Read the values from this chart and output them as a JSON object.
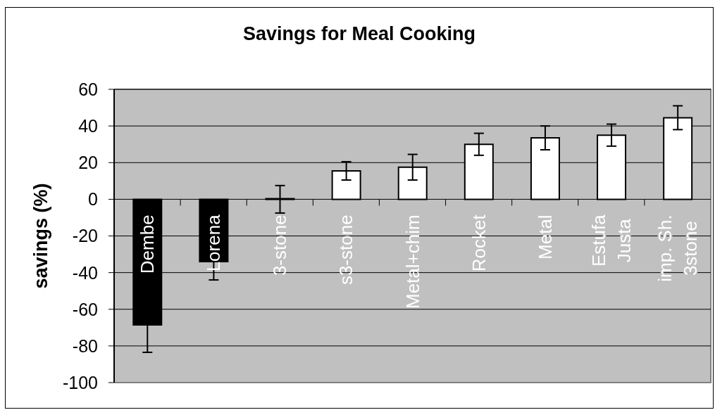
{
  "chart_data": {
    "type": "bar",
    "title": "Savings for Meal Cooking",
    "ylabel": "savings (%)",
    "categories": [
      "Dembe",
      "Lorena",
      "3-stone",
      "s3-stone",
      "Metal+chim",
      "Rocket",
      "Metal",
      "Estufa Justa",
      "imp. Sh. 3stone"
    ],
    "values": [
      -68.5,
      -34,
      0,
      15.5,
      17.5,
      30,
      33.5,
      35,
      44.5
    ],
    "errors": [
      15,
      10,
      7.5,
      5,
      7,
      6,
      6.5,
      6,
      6.5
    ],
    "colors": [
      "#000000",
      "#000000",
      "#ffffff",
      "#ffffff",
      "#ffffff",
      "#ffffff",
      "#ffffff",
      "#ffffff",
      "#ffffff"
    ],
    "ylim": [
      -100,
      60
    ],
    "yticks": [
      -100,
      -80,
      -60,
      -40,
      -20,
      0,
      20,
      40,
      60
    ],
    "grid": "y"
  }
}
